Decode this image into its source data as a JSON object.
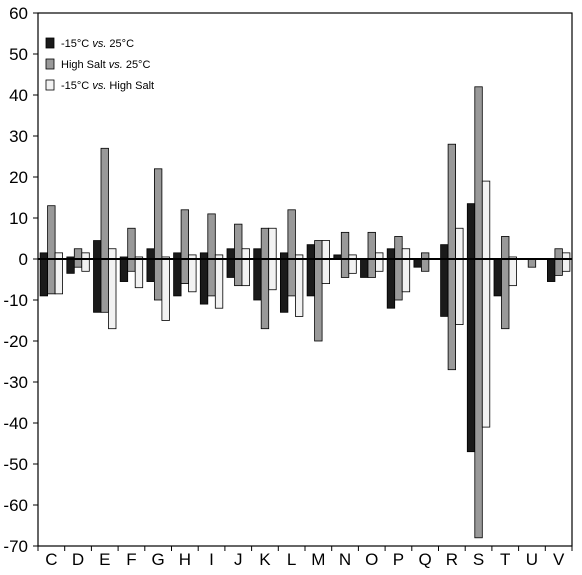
{
  "chart_data": {
    "type": "bar",
    "title": "",
    "xlabel": "",
    "ylabel": "",
    "ylim": [
      -70,
      60
    ],
    "yticks": [
      -70,
      -60,
      -50,
      -40,
      -30,
      -20,
      -10,
      0,
      10,
      20,
      30,
      40,
      50,
      60
    ],
    "grid": false,
    "legend_position": "top-left",
    "categories": [
      "C",
      "D",
      "E",
      "F",
      "G",
      "H",
      "I",
      "J",
      "K",
      "L",
      "M",
      "N",
      "O",
      "P",
      "Q",
      "R",
      "S",
      "T",
      "U",
      "V"
    ],
    "series": [
      {
        "name_parts": [
          "-15°C ",
          "vs.",
          " 25°C"
        ],
        "color": "#1a1a1a",
        "values": [
          [
            1.5,
            -9
          ],
          [
            0.5,
            -3.5
          ],
          [
            4.5,
            -13
          ],
          [
            0.5,
            -5.5
          ],
          [
            2.5,
            -5.5
          ],
          [
            1.5,
            -9
          ],
          [
            1.5,
            -11
          ],
          [
            2.5,
            -4.5
          ],
          [
            2.5,
            -10
          ],
          [
            1.5,
            -13
          ],
          [
            3.5,
            -9
          ],
          [
            1,
            0
          ],
          [
            0,
            -4.5
          ],
          [
            2.5,
            -12
          ],
          [
            0,
            -2
          ],
          [
            3.5,
            -14
          ],
          [
            13.5,
            -47
          ],
          [
            0,
            -9
          ],
          [
            0,
            0
          ],
          [
            0,
            -5.5
          ]
        ]
      },
      {
        "name_parts": [
          "High Salt ",
          "vs.",
          " 25°C"
        ],
        "color": "#999999",
        "values": [
          [
            13,
            -8.5
          ],
          [
            2.5,
            -2
          ],
          [
            27,
            -13
          ],
          [
            7.5,
            -3
          ],
          [
            22,
            -10
          ],
          [
            12,
            -6
          ],
          [
            11,
            -9
          ],
          [
            8.5,
            -6.5
          ],
          [
            7.5,
            -17
          ],
          [
            12,
            -9
          ],
          [
            4.5,
            -20
          ],
          [
            6.5,
            -4.5
          ],
          [
            6.5,
            -4.5
          ],
          [
            5.5,
            -10
          ],
          [
            1.5,
            -3
          ],
          [
            28,
            -27
          ],
          [
            42,
            -68
          ],
          [
            5.5,
            -17
          ],
          [
            0,
            -2
          ],
          [
            2.5,
            -4
          ]
        ]
      },
      {
        "name_parts": [
          "-15°C ",
          "vs.",
          " High Salt"
        ],
        "color": "#f2f2f2",
        "values": [
          [
            1.5,
            -8.5
          ],
          [
            1.5,
            -3
          ],
          [
            2.5,
            -17
          ],
          [
            0.5,
            -7
          ],
          [
            0.5,
            -15
          ],
          [
            1,
            -8
          ],
          [
            1,
            -12
          ],
          [
            2.5,
            -6.5
          ],
          [
            7.5,
            -7.5
          ],
          [
            1,
            -14
          ],
          [
            4.5,
            -6
          ],
          [
            1,
            -3.5
          ],
          [
            1.5,
            -3
          ],
          [
            2.5,
            -8
          ],
          [
            0,
            0
          ],
          [
            7.5,
            -16
          ],
          [
            19,
            -41
          ],
          [
            0.5,
            -6.5
          ],
          [
            0,
            0
          ],
          [
            1.5,
            -3
          ]
        ]
      }
    ]
  }
}
